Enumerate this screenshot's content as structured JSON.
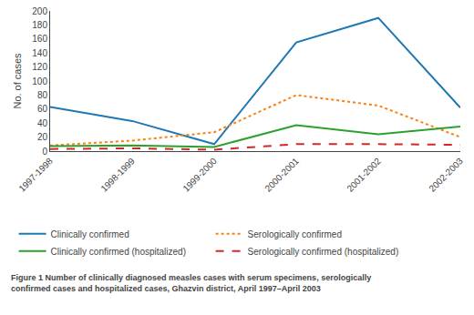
{
  "chart_data": {
    "type": "line",
    "ylabel": "No. of cases",
    "categories": [
      "1997-1998",
      "1998-1999",
      "1999-2000",
      "2000-2001",
      "2001-2002",
      "2002-2003"
    ],
    "series": [
      {
        "name": "Clinically confirmed",
        "values": [
          63,
          43,
          10,
          155,
          190,
          62
        ],
        "line_style": "solid"
      },
      {
        "name": "Serologically confirmed",
        "values": [
          8,
          15,
          27,
          80,
          65,
          20
        ],
        "line_style": "dotted"
      },
      {
        "name": "Clinically confirmed (hospitalized)",
        "values": [
          7,
          8,
          6,
          37,
          24,
          35
        ],
        "line_style": "solid"
      },
      {
        "name": "Serologically confirmed (hospitalized)",
        "values": [
          3,
          4,
          2,
          10,
          10,
          9
        ],
        "line_style": "dashed"
      }
    ],
    "ylim": [
      0,
      200
    ],
    "yticks": [
      0,
      20,
      40,
      60,
      80,
      100,
      120,
      140,
      160,
      180,
      200
    ],
    "grid": false,
    "legend": "bottom",
    "caption": "Figure 1 Number of clinically diagnosed measles cases with serum specimens, serologically\nconfirmed cases and hospitalized cases, Ghazvin district, April 1997–April 2003"
  }
}
